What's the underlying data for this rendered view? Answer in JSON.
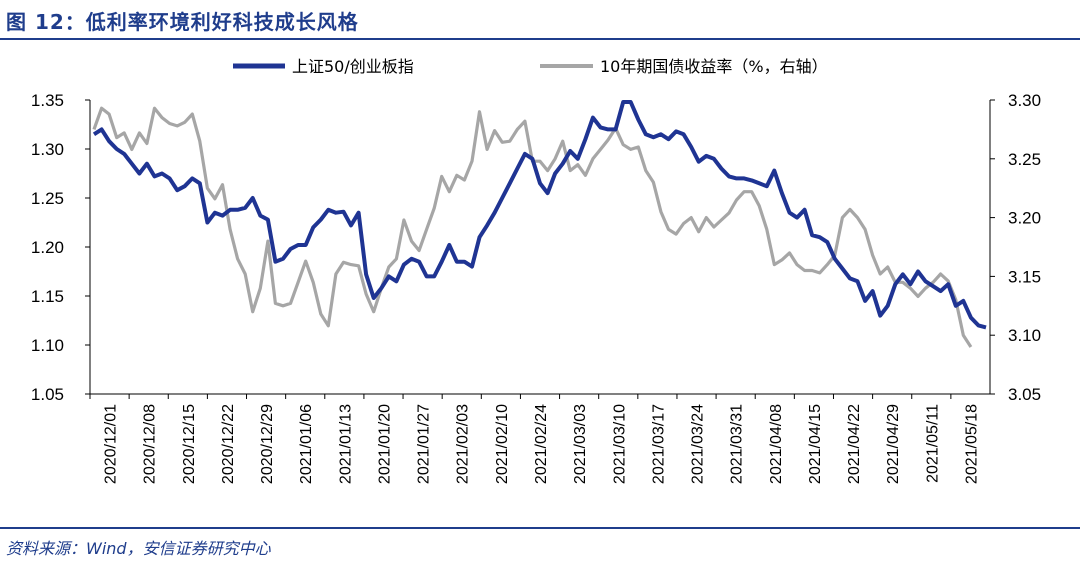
{
  "header": {
    "title": "图 12：低利率环境利好科技成长风格"
  },
  "footer": {
    "source": "资料来源：Wind，安信证券研究中心"
  },
  "colors": {
    "series1": "#1f3493",
    "series2": "#a6a6a6",
    "brand": "#1f3d8c"
  },
  "chart_data": {
    "type": "line",
    "title": "",
    "legend_position": "top",
    "xlabel": "",
    "ylabel": "",
    "ylim": [
      1.05,
      1.35
    ],
    "y2lim": [
      3.05,
      3.3
    ],
    "yticks": [
      "1.35",
      "1.30",
      "1.25",
      "1.20",
      "1.15",
      "1.10",
      "1.05"
    ],
    "y2ticks": [
      "3.30",
      "3.25",
      "3.20",
      "3.15",
      "3.10",
      "3.05"
    ],
    "xticks": [
      "2020/12/01",
      "2020/12/08",
      "2020/12/15",
      "2020/12/22",
      "2020/12/29",
      "2021/01/06",
      "2021/01/13",
      "2021/01/20",
      "2021/01/27",
      "2021/02/03",
      "2021/02/10",
      "2021/02/24",
      "2021/03/03",
      "2021/03/10",
      "2021/03/17",
      "2021/03/24",
      "2021/03/31",
      "2021/04/08",
      "2021/04/15",
      "2021/04/22",
      "2021/04/29",
      "2021/05/11",
      "2021/05/18"
    ],
    "series": [
      {
        "name": "上证50/创业板指",
        "axis": "left",
        "values": [
          1.315,
          1.32,
          1.308,
          1.3,
          1.295,
          1.285,
          1.275,
          1.285,
          1.272,
          1.275,
          1.27,
          1.258,
          1.262,
          1.27,
          1.265,
          1.225,
          1.235,
          1.232,
          1.238,
          1.238,
          1.24,
          1.25,
          1.232,
          1.228,
          1.185,
          1.188,
          1.198,
          1.202,
          1.202,
          1.22,
          1.228,
          1.238,
          1.235,
          1.236,
          1.222,
          1.235,
          1.172,
          1.148,
          1.158,
          1.17,
          1.165,
          1.182,
          1.188,
          1.185,
          1.17,
          1.17,
          1.185,
          1.202,
          1.185,
          1.185,
          1.18,
          1.21,
          1.222,
          1.235,
          1.25,
          1.265,
          1.28,
          1.295,
          1.29,
          1.265,
          1.255,
          1.275,
          1.285,
          1.298,
          1.29,
          1.31,
          1.332,
          1.322,
          1.32,
          1.32,
          1.348,
          1.348,
          1.33,
          1.315,
          1.312,
          1.315,
          1.31,
          1.318,
          1.315,
          1.302,
          1.287,
          1.293,
          1.29,
          1.28,
          1.272,
          1.27,
          1.27,
          1.268,
          1.265,
          1.262,
          1.278,
          1.255,
          1.235,
          1.23,
          1.238,
          1.212,
          1.21,
          1.205,
          1.188,
          1.178,
          1.168,
          1.165,
          1.145,
          1.155,
          1.13,
          1.14,
          1.162,
          1.172,
          1.162,
          1.175,
          1.165,
          1.16,
          1.155,
          1.162,
          1.14,
          1.145,
          1.128,
          1.12,
          1.118
        ]
      },
      {
        "name": "10年期国债收益率（%，右轴）",
        "axis": "right",
        "values": [
          3.275,
          3.293,
          3.288,
          3.268,
          3.272,
          3.258,
          3.272,
          3.263,
          3.293,
          3.285,
          3.28,
          3.278,
          3.281,
          3.288,
          3.265,
          3.225,
          3.216,
          3.228,
          3.19,
          3.165,
          3.152,
          3.12,
          3.14,
          3.18,
          3.127,
          3.125,
          3.127,
          3.145,
          3.163,
          3.145,
          3.118,
          3.108,
          3.152,
          3.162,
          3.16,
          3.159,
          3.135,
          3.12,
          3.14,
          3.158,
          3.165,
          3.198,
          3.18,
          3.172,
          3.19,
          3.208,
          3.235,
          3.222,
          3.236,
          3.232,
          3.248,
          3.29,
          3.258,
          3.274,
          3.264,
          3.265,
          3.275,
          3.282,
          3.248,
          3.248,
          3.24,
          3.25,
          3.265,
          3.24,
          3.245,
          3.236,
          3.25,
          3.258,
          3.266,
          3.276,
          3.262,
          3.258,
          3.26,
          3.24,
          3.23,
          3.205,
          3.19,
          3.186,
          3.195,
          3.2,
          3.188,
          3.2,
          3.192,
          3.198,
          3.204,
          3.215,
          3.222,
          3.222,
          3.21,
          3.19,
          3.16,
          3.164,
          3.17,
          3.16,
          3.155,
          3.155,
          3.153,
          3.16,
          3.168,
          3.2,
          3.207,
          3.2,
          3.19,
          3.168,
          3.152,
          3.158,
          3.145,
          3.145,
          3.14,
          3.133,
          3.14,
          3.145,
          3.152,
          3.146,
          3.13,
          3.1,
          3.09
        ]
      }
    ]
  }
}
